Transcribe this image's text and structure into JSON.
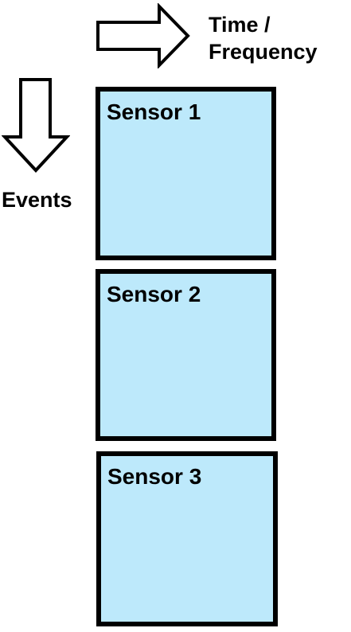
{
  "axes": {
    "horizontal_label_line1": "Time /",
    "horizontal_label_line2": "Frequency",
    "vertical_label": "Events"
  },
  "sensors": [
    {
      "label": "Sensor 1"
    },
    {
      "label": "Sensor 2"
    },
    {
      "label": "Sensor 3"
    }
  ],
  "colors": {
    "panel_fill": "#bde9fb",
    "panel_border": "#000000",
    "arrow_fill": "#ffffff",
    "arrow_stroke": "#000000"
  }
}
